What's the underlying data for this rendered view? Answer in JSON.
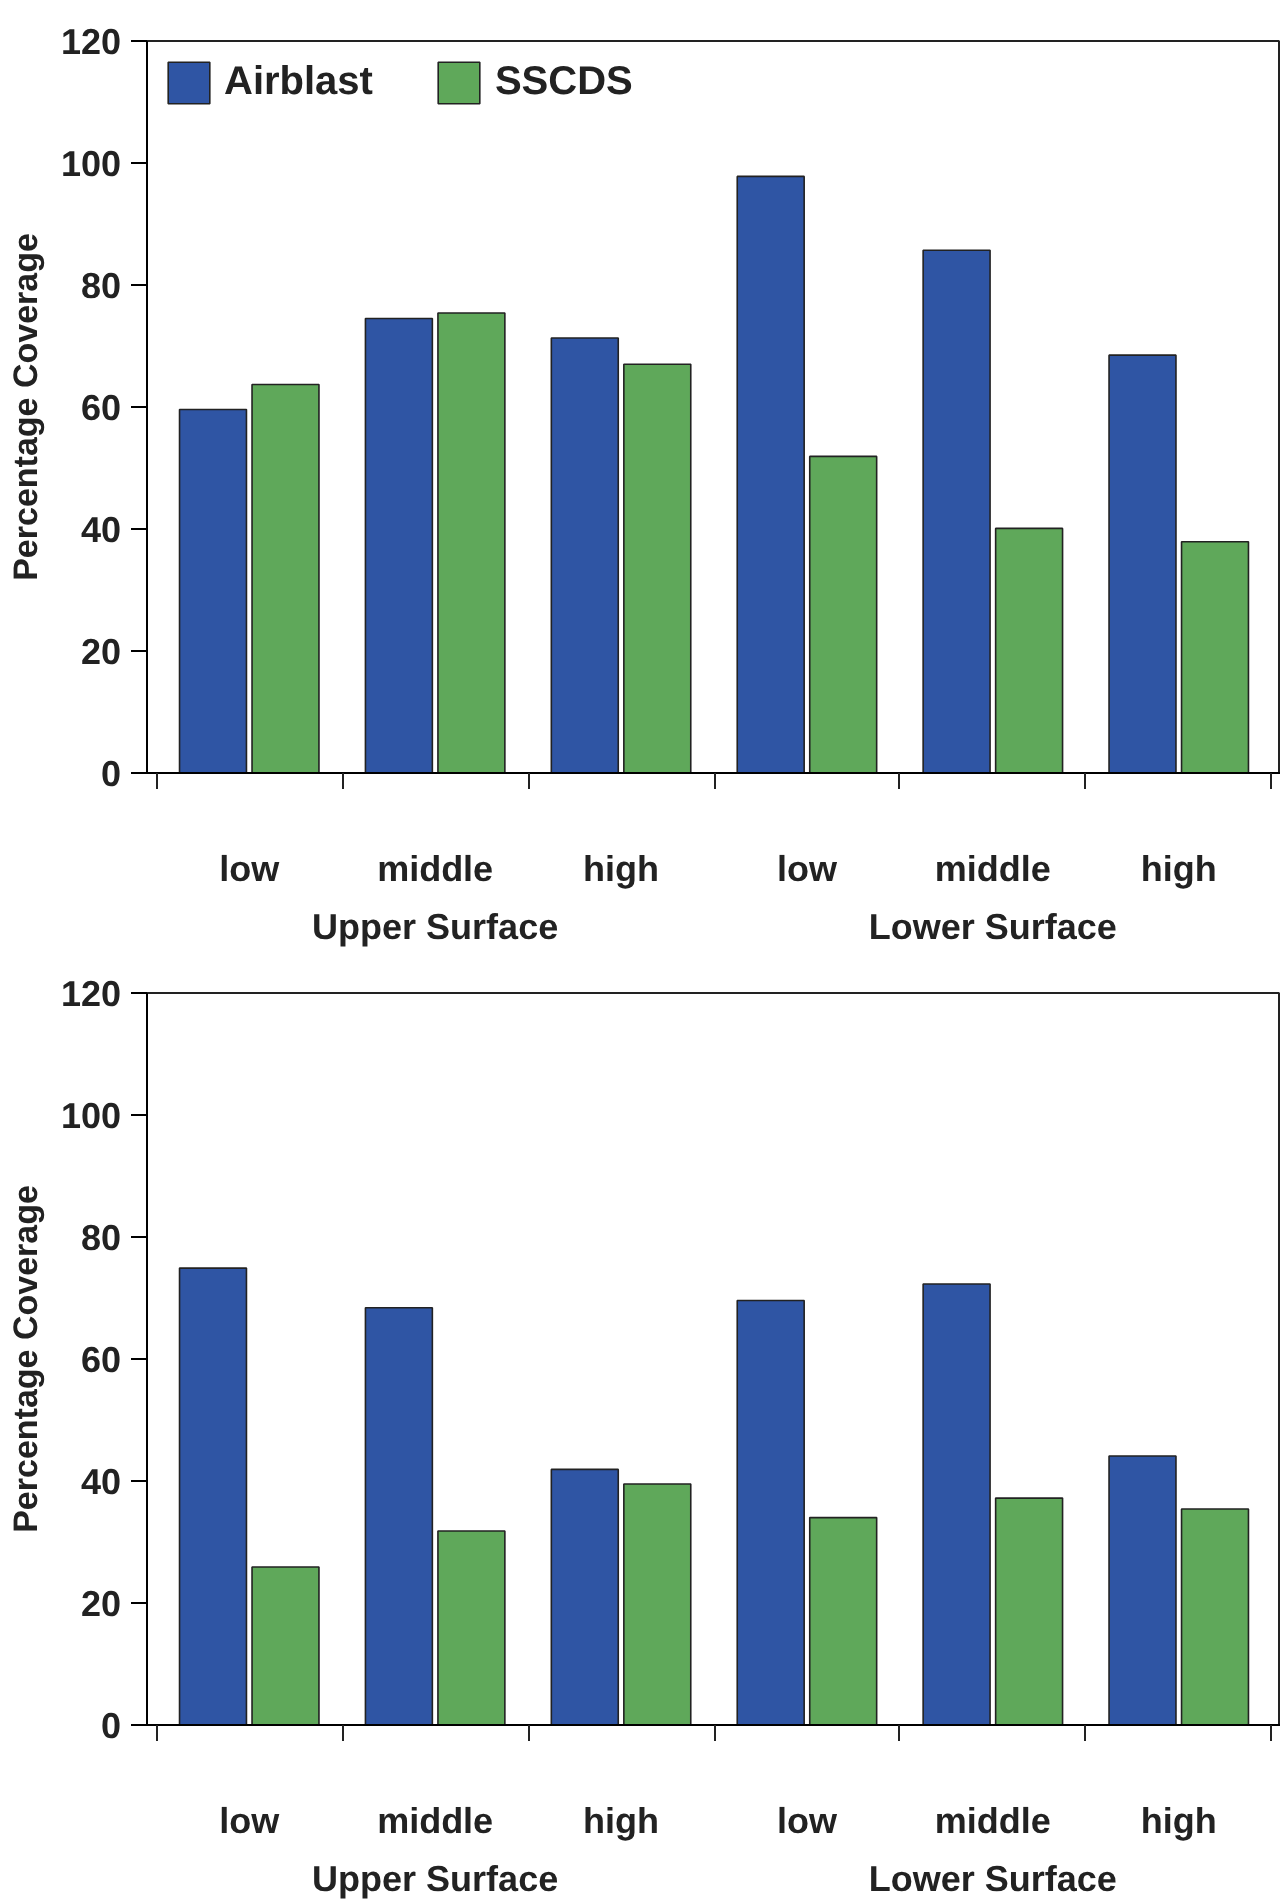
{
  "chart_data": [
    {
      "type": "bar",
      "categories": [
        "low",
        "middle",
        "high",
        "low",
        "middle",
        "high"
      ],
      "ylabel": "Percentage Coverage",
      "annotations": [
        "Upper Surface",
        "Lower Surface"
      ],
      "ylim": [
        0,
        120
      ],
      "yticks": [
        0,
        20,
        40,
        60,
        80,
        100,
        120
      ],
      "legend": "top left",
      "grid": false,
      "series": [
        {
          "name": "Airblast",
          "color": "#2f55a4",
          "values": [
            59.6,
            74.5,
            71.3,
            97.8,
            85.7,
            68.5
          ]
        },
        {
          "name": "SSCDS",
          "color": "#5fa85a",
          "values": [
            63.7,
            75.4,
            67,
            51.9,
            40.1,
            37.9
          ]
        }
      ]
    },
    {
      "type": "bar",
      "categories": [
        "low",
        "middle",
        "high",
        "low",
        "middle",
        "high"
      ],
      "ylabel": "Percentage Coverage",
      "annotations": [
        "Upper Surface",
        "Lower Surface"
      ],
      "ylim": [
        0,
        120
      ],
      "yticks": [
        0,
        20,
        40,
        60,
        80,
        100,
        120
      ],
      "legend": false,
      "grid": false,
      "series": [
        {
          "color": "#2f55a4",
          "values": [
            74.9,
            68.4,
            41.9,
            69.6,
            72.3,
            44.1
          ]
        },
        {
          "color": "#5fa85a",
          "values": [
            25.9,
            31.8,
            39.5,
            34,
            37.2,
            35.4
          ]
        }
      ]
    }
  ]
}
